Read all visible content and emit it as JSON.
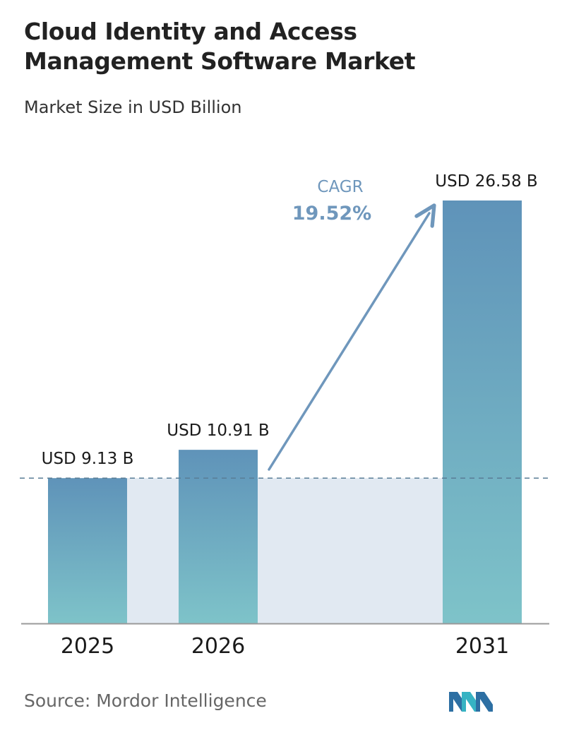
{
  "title": "Cloud Identity and Access Management Software Market",
  "subtitle": "Market Size in USD Billion",
  "source": "Source:  Mordor Intelligence",
  "logo": "mordor-intelligence-logo",
  "colors": {
    "bar_top": "#5f93b9",
    "bar_bottom": "#7ec3c9",
    "band": "#e1e9f2",
    "arrow": "#6f97bc",
    "dashed_line": "#5a7d96",
    "axis": "#9a9a9a"
  },
  "chart_data": {
    "type": "bar",
    "categories": [
      "2025",
      "2026",
      "2031"
    ],
    "values": [
      9.13,
      10.91,
      26.58
    ],
    "value_labels": [
      "USD 9.13 B",
      "USD 10.91 B",
      "USD 26.58 B"
    ],
    "reference_line": 9.13,
    "cagr": {
      "label": "CAGR",
      "value": "19.52%"
    },
    "ylim": [
      0,
      26.58
    ],
    "grid": false
  }
}
